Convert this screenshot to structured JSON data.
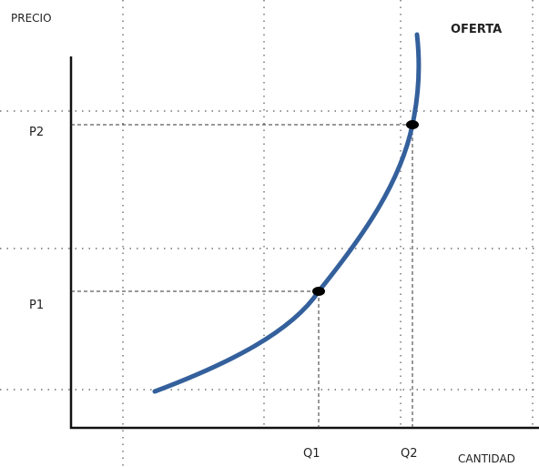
{
  "axes": {
    "y_label": "PRECIO",
    "x_label": "CANTIDAD"
  },
  "curve": {
    "label": "OFERTA"
  },
  "prices": [
    "P2",
    "P1"
  ],
  "quantities": [
    "Q1",
    "Q2"
  ]
}
